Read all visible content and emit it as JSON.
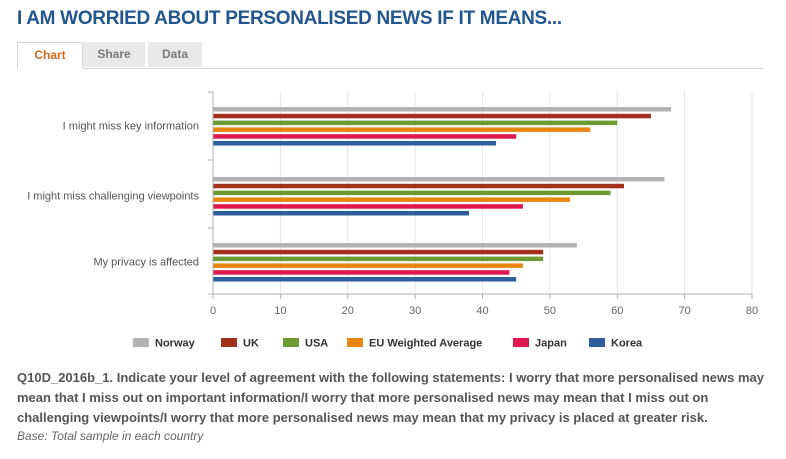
{
  "title": "I AM WORRIED ABOUT PERSONALISED NEWS IF IT MEANS...",
  "tabs": [
    {
      "label": "Chart",
      "active": true
    },
    {
      "label": "Share",
      "active": false
    },
    {
      "label": "Data",
      "active": false
    }
  ],
  "chart_data": {
    "type": "bar",
    "orientation": "horizontal",
    "categories": [
      "I might miss key information",
      "I might miss challenging viewpoints",
      "My privacy is affected"
    ],
    "series": [
      {
        "name": "Norway",
        "color": "#b3b3b3",
        "values": [
          68,
          67,
          54
        ]
      },
      {
        "name": "UK",
        "color": "#a3301b",
        "values": [
          65,
          61,
          49
        ]
      },
      {
        "name": "USA",
        "color": "#6e9a33",
        "values": [
          60,
          59,
          49
        ]
      },
      {
        "name": "EU Weighted Average",
        "color": "#e8860f",
        "values": [
          56,
          53,
          46
        ]
      },
      {
        "name": "Japan",
        "color": "#e0174c",
        "values": [
          45,
          46,
          44
        ]
      },
      {
        "name": "Korea",
        "color": "#2d5e9b",
        "values": [
          42,
          38,
          45
        ]
      }
    ],
    "xlim": [
      0,
      80
    ],
    "ticks": [
      0,
      10,
      20,
      30,
      40,
      50,
      60,
      70,
      80
    ],
    "legend_position": "bottom"
  },
  "footnote": "Q10D_2016b_1. Indicate your level of agreement with the following statements: I worry that more personalised news may mean that I miss out on important information/I worry that more personalised news may mean that I miss out on challenging viewpoints/I worry that more personalised news may mean that my privacy is placed at greater risk.",
  "base_note": "Base: Total sample in each country"
}
